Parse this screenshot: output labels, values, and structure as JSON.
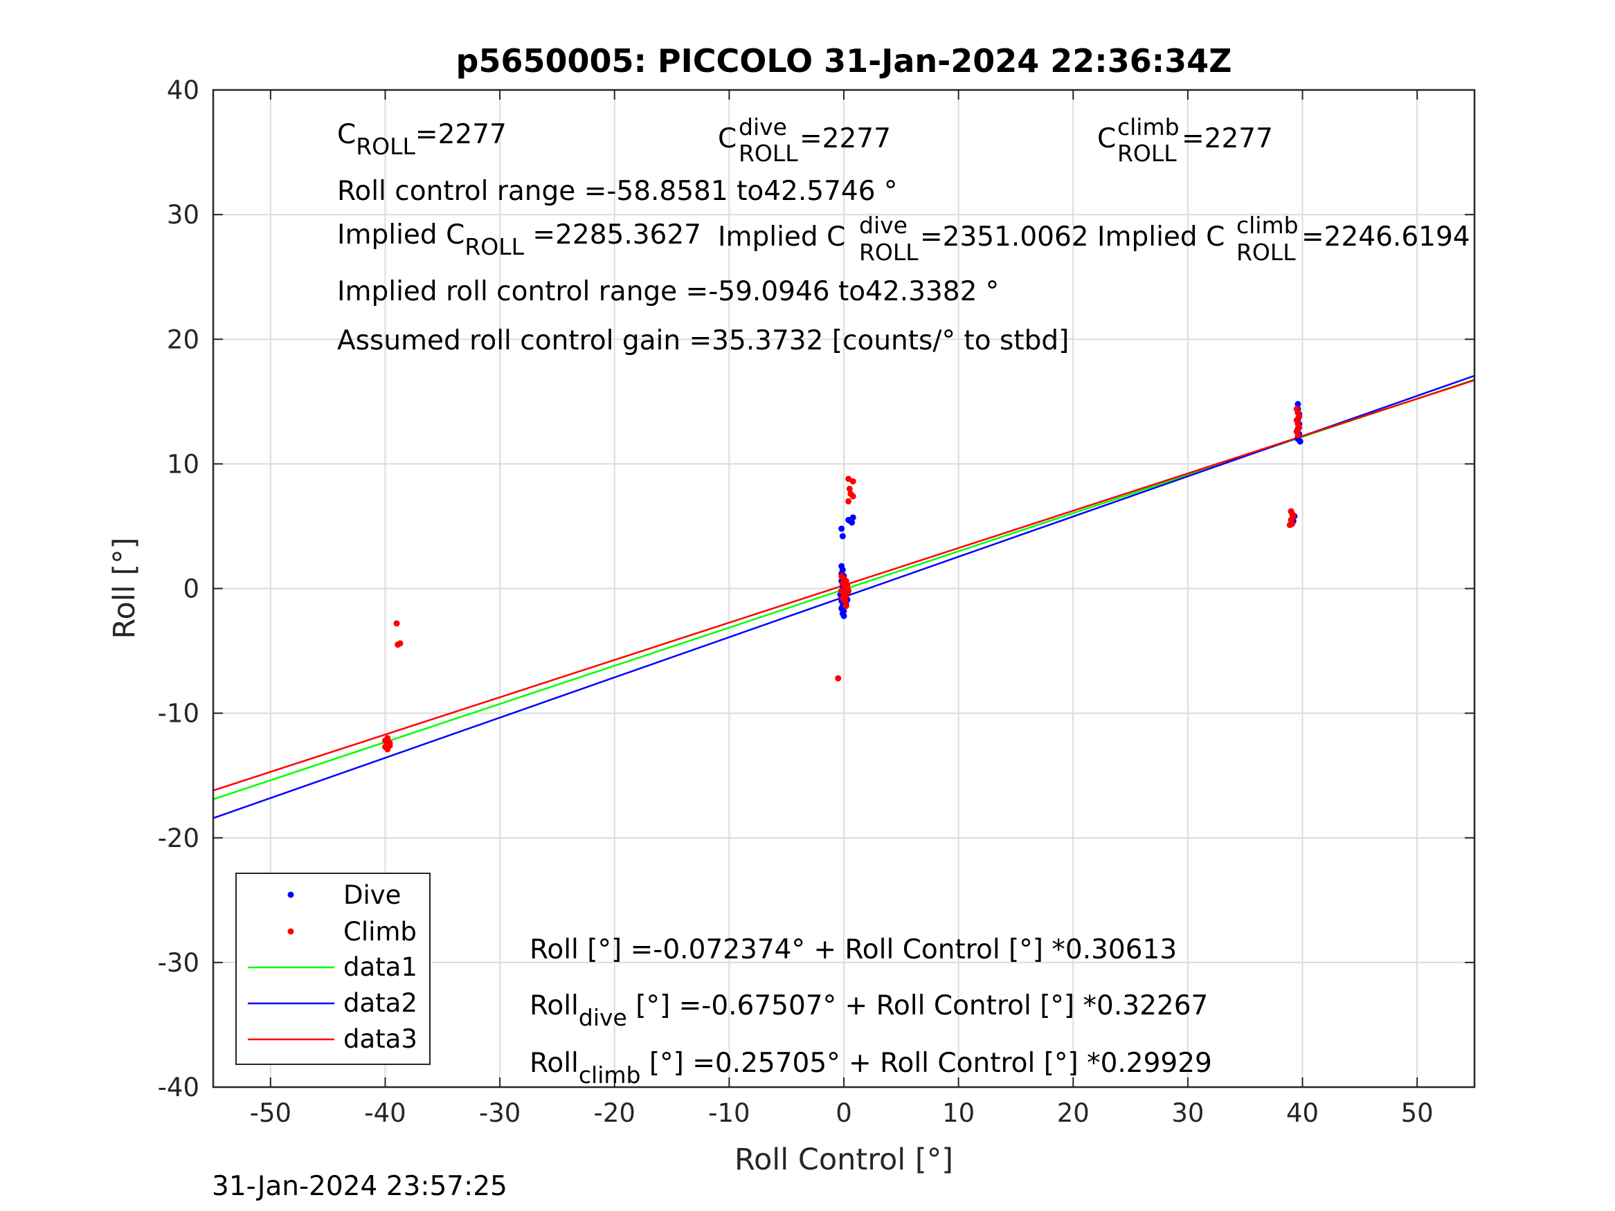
{
  "figure": {
    "title": "p5650005: PICCOLO 31-Jan-2024 22:36:34Z",
    "footer": "31-Jan-2024 23:57:25"
  },
  "annotations": {
    "c_roll_base": "C",
    "c_roll_sub": "ROLL",
    "c_roll_val": "=2277",
    "c_dive_base": "C",
    "c_dive_sup": "dive",
    "c_dive_sub": "ROLL",
    "c_dive_val": " =2277",
    "c_climb_base": "C",
    "c_climb_sup": "climb",
    "c_climb_sub": "ROLL",
    "c_climb_val": " =2277",
    "range_line": "Roll control range =-58.8581 to42.5746 °",
    "implied_base": "Implied C",
    "implied_sub": "ROLL",
    "implied_val": " =2285.3627",
    "implied_dive_base": "Implied C",
    "implied_dive_sup": "dive",
    "implied_dive_sub": "ROLL",
    "implied_dive_val": " =2351.0062",
    "implied_climb_base": "Implied C",
    "implied_climb_sup": "climb",
    "implied_climb_sub": "ROLL",
    "implied_climb_val": " =2246.6194",
    "implied_range_line": "Implied roll control range =-59.0946 to42.3382 °",
    "gain_line": "Assumed roll control gain =35.3732 [counts/° to stbd]",
    "fit_all": "Roll [°] =-0.072374° + Roll Control [°] *0.30613",
    "fit_dive_base": "Roll",
    "fit_dive_sub": "dive",
    "fit_dive_rest": " [°] =-0.67507° + Roll Control [°] *0.32267",
    "fit_climb_base": "Roll",
    "fit_climb_sub": "climb",
    "fit_climb_rest": " [°] =0.25705° + Roll Control [°] *0.29929"
  },
  "legend": {
    "dive": "Dive",
    "climb": "Climb",
    "data1": "data1",
    "data2": "data2",
    "data3": "data3"
  },
  "colors": {
    "dive": "#0000ff",
    "climb": "#ff0000",
    "data1": "#00ff00",
    "data2": "#0000ff",
    "data3": "#ff0000"
  },
  "chart_data": {
    "type": "scatter",
    "title": "p5650005: PICCOLO 31-Jan-2024 22:36:34Z",
    "xlabel": "Roll Control [°]",
    "ylabel": "Roll [°]",
    "xlim": [
      -55,
      55
    ],
    "ylim": [
      -40,
      40
    ],
    "xticks": [
      -50,
      -40,
      -30,
      -20,
      -10,
      0,
      10,
      20,
      30,
      40,
      50
    ],
    "yticks": [
      -40,
      -30,
      -20,
      -10,
      0,
      10,
      20,
      30,
      40
    ],
    "grid": true,
    "legend_position": "bottom-left",
    "series": [
      {
        "name": "Dive",
        "kind": "points",
        "points": [
          [
            -0.2,
            4.8
          ],
          [
            -0.1,
            4.2
          ],
          [
            0.4,
            5.5
          ],
          [
            0.6,
            5.4
          ],
          [
            0.8,
            5.7
          ],
          [
            0.7,
            5.3
          ],
          [
            -0.2,
            1.8
          ],
          [
            -0.1,
            1.5
          ],
          [
            -0.2,
            1.2
          ],
          [
            0.0,
            1.0
          ],
          [
            -0.1,
            0.8
          ],
          [
            -0.2,
            0.6
          ],
          [
            0.0,
            0.4
          ],
          [
            -0.1,
            0.2
          ],
          [
            0.1,
            0.0
          ],
          [
            -0.2,
            -0.2
          ],
          [
            0.0,
            -0.4
          ],
          [
            -0.1,
            -0.6
          ],
          [
            0.1,
            -0.8
          ],
          [
            -0.2,
            -1.0
          ],
          [
            0.0,
            -1.2
          ],
          [
            -0.1,
            -1.4
          ],
          [
            -0.2,
            -1.6
          ],
          [
            0.0,
            -1.8
          ],
          [
            -0.1,
            -2.0
          ],
          [
            0.0,
            -2.2
          ],
          [
            0.2,
            -1.3
          ],
          [
            0.3,
            -0.9
          ],
          [
            -0.3,
            -0.5
          ],
          [
            0.2,
            0.3
          ],
          [
            39.6,
            14.8
          ],
          [
            39.6,
            14.4
          ],
          [
            39.7,
            14.0
          ],
          [
            39.6,
            13.6
          ],
          [
            39.7,
            13.2
          ],
          [
            39.6,
            12.8
          ],
          [
            39.7,
            12.4
          ],
          [
            39.6,
            12.1
          ],
          [
            39.8,
            11.8
          ],
          [
            39.6,
            12.0
          ],
          [
            39.7,
            13.8
          ],
          [
            39.1,
            5.6
          ],
          [
            39.2,
            5.4
          ],
          [
            39.3,
            5.8
          ],
          [
            39.1,
            5.2
          ]
        ]
      },
      {
        "name": "Climb",
        "kind": "points",
        "points": [
          [
            0.4,
            8.8
          ],
          [
            0.8,
            8.6
          ],
          [
            0.6,
            7.6
          ],
          [
            0.8,
            7.4
          ],
          [
            0.4,
            7.0
          ],
          [
            0.5,
            8.0
          ],
          [
            -0.5,
            -7.2
          ],
          [
            -39.0,
            -2.8
          ],
          [
            -38.9,
            -4.5
          ],
          [
            -38.7,
            -4.4
          ],
          [
            -40.0,
            -12.2
          ],
          [
            -39.8,
            -12.0
          ],
          [
            -39.6,
            -12.4
          ],
          [
            -40.0,
            -12.7
          ],
          [
            -39.8,
            -12.9
          ],
          [
            -39.6,
            -12.6
          ],
          [
            -39.9,
            -12.3
          ],
          [
            -0.2,
            1.0
          ],
          [
            0.0,
            0.8
          ],
          [
            0.2,
            0.6
          ],
          [
            -0.1,
            0.4
          ],
          [
            0.1,
            0.2
          ],
          [
            0.3,
            0.0
          ],
          [
            -0.2,
            -0.2
          ],
          [
            0.0,
            -0.4
          ],
          [
            0.2,
            -0.6
          ],
          [
            -0.1,
            -0.8
          ],
          [
            0.1,
            -1.0
          ],
          [
            0.3,
            0.3
          ],
          [
            0.4,
            -0.2
          ],
          [
            0.2,
            -1.4
          ],
          [
            39.5,
            14.4
          ],
          [
            39.6,
            14.1
          ],
          [
            39.7,
            13.8
          ],
          [
            39.5,
            13.5
          ],
          [
            39.6,
            13.2
          ],
          [
            39.7,
            12.9
          ],
          [
            39.5,
            12.6
          ],
          [
            39.6,
            12.3
          ],
          [
            39.0,
            6.2
          ],
          [
            39.1,
            6.0
          ],
          [
            39.2,
            5.8
          ],
          [
            39.0,
            5.5
          ],
          [
            39.1,
            5.2
          ],
          [
            38.9,
            5.1
          ]
        ]
      },
      {
        "name": "data1",
        "kind": "line",
        "intercept": -0.072374,
        "slope": 0.30613,
        "x": [
          -55,
          55
        ]
      },
      {
        "name": "data2",
        "kind": "line",
        "intercept": -0.67507,
        "slope": 0.32267,
        "x": [
          -55,
          55
        ]
      },
      {
        "name": "data3",
        "kind": "line",
        "intercept": 0.25705,
        "slope": 0.29929,
        "x": [
          -55,
          55
        ]
      }
    ]
  }
}
